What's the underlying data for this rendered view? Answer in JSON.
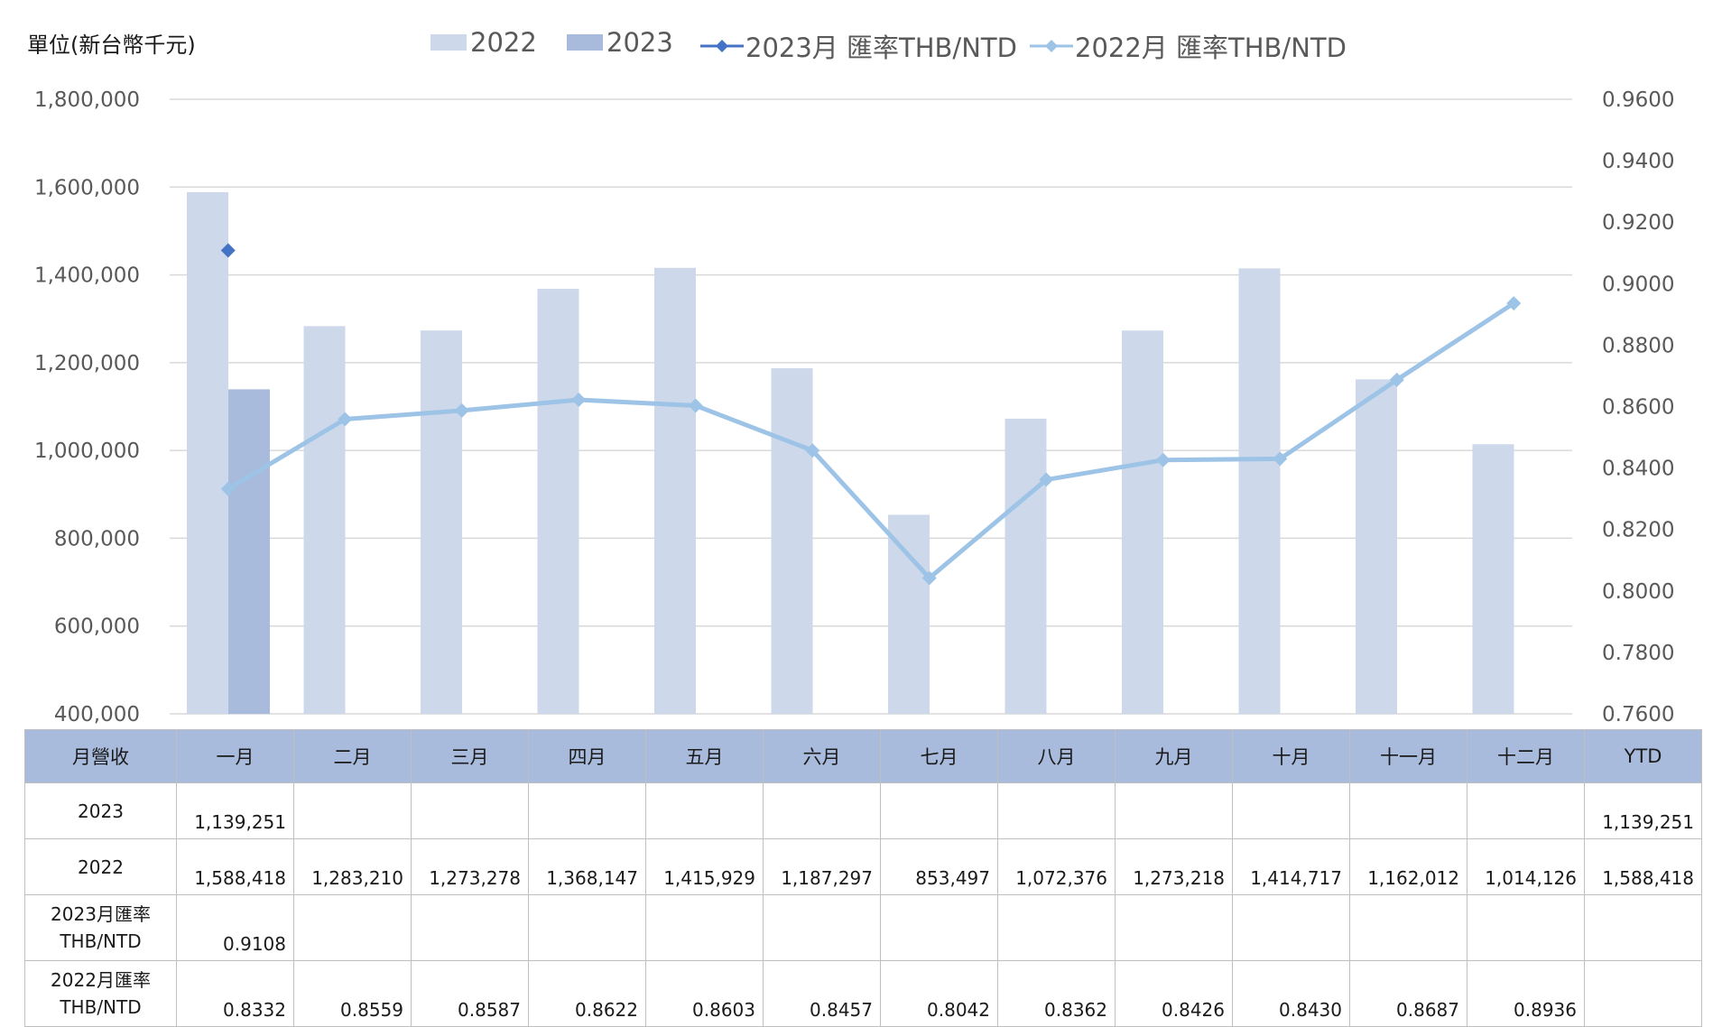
{
  "unit_label": "單位(新台幣千元)",
  "chart_data": {
    "type": "bar",
    "categories": [
      "一月",
      "二月",
      "三月",
      "四月",
      "五月",
      "六月",
      "七月",
      "八月",
      "九月",
      "十月",
      "十一月",
      "十二月"
    ],
    "series": [
      {
        "name": "2022",
        "kind": "bar",
        "axis": "left",
        "color": "#cdd8ea",
        "values": [
          1588418,
          1283210,
          1273278,
          1368147,
          1415929,
          1187297,
          853497,
          1072376,
          1273218,
          1414717,
          1162012,
          1014126
        ]
      },
      {
        "name": "2023",
        "kind": "bar",
        "axis": "left",
        "color": "#a9bbdc",
        "values": [
          1139251,
          null,
          null,
          null,
          null,
          null,
          null,
          null,
          null,
          null,
          null,
          null
        ]
      },
      {
        "name": "2023月 匯率THB/NTD",
        "kind": "line",
        "axis": "right",
        "color": "#4472c4",
        "values": [
          0.9108,
          null,
          null,
          null,
          null,
          null,
          null,
          null,
          null,
          null,
          null,
          null
        ]
      },
      {
        "name": "2022月 匯率THB/NTD",
        "kind": "line",
        "axis": "right",
        "color": "#9dc3e6",
        "values": [
          0.8332,
          0.8559,
          0.8587,
          0.8622,
          0.8603,
          0.8457,
          0.8042,
          0.8362,
          0.8426,
          0.843,
          0.8687,
          0.8936
        ]
      }
    ],
    "left_axis": {
      "min": 400000,
      "max": 1800000,
      "step": 200000,
      "tick_labels": [
        "400,000",
        "600,000",
        "800,000",
        "1,000,000",
        "1,200,000",
        "1,400,000",
        "1,600,000",
        "1,800,000"
      ]
    },
    "right_axis": {
      "min": 0.76,
      "max": 0.96,
      "step": 0.02,
      "tick_labels": [
        "0.7600",
        "0.7800",
        "0.8000",
        "0.8200",
        "0.8400",
        "0.8600",
        "0.8800",
        "0.9000",
        "0.9200",
        "0.9400",
        "0.9600"
      ]
    },
    "grid": true,
    "legend_position": "top-center"
  },
  "table": {
    "header": [
      "月營收",
      "一月",
      "二月",
      "三月",
      "四月",
      "五月",
      "六月",
      "七月",
      "八月",
      "九月",
      "十月",
      "十一月",
      "十二月",
      "YTD"
    ],
    "rows": [
      {
        "label": "2023",
        "cells": [
          "1,139,251",
          "",
          "",
          "",
          "",
          "",
          "",
          "",
          "",
          "",
          "",
          "",
          "1,139,251"
        ]
      },
      {
        "label": "2022",
        "cells": [
          "1,588,418",
          "1,283,210",
          "1,273,278",
          "1,368,147",
          "1,415,929",
          "1,187,297",
          "853,497",
          "1,072,376",
          "1,273,218",
          "1,414,717",
          "1,162,012",
          "1,014,126",
          "1,588,418"
        ]
      },
      {
        "label": "2023月匯率\nTHB/NTD",
        "cells": [
          "0.9108",
          "",
          "",
          "",
          "",
          "",
          "",
          "",
          "",
          "",
          "",
          "",
          ""
        ]
      },
      {
        "label": "2022月匯率\nTHB/NTD",
        "cells": [
          "0.8332",
          "0.8559",
          "0.8587",
          "0.8622",
          "0.8603",
          "0.8457",
          "0.8042",
          "0.8362",
          "0.8426",
          "0.8430",
          "0.8687",
          "0.8936",
          ""
        ]
      }
    ]
  }
}
